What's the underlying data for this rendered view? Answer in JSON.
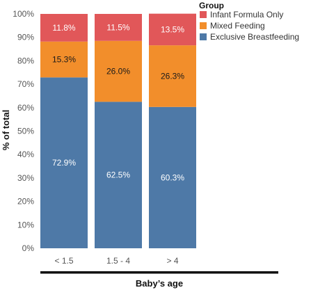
{
  "chart_data": {
    "type": "bar",
    "stacked": true,
    "categories": [
      "< 1.5",
      "1.5 - 4",
      "> 4"
    ],
    "series": [
      {
        "name": "Exclusive Breastfeeding",
        "color": "#4e79a7",
        "values": [
          72.9,
          62.5,
          60.3
        ],
        "labels": [
          "72.9%",
          "62.5%",
          "60.3%"
        ],
        "label_color": "#ffffff"
      },
      {
        "name": "Mixed Feeding",
        "color": "#f28e2b",
        "values": [
          15.3,
          26.0,
          26.3
        ],
        "labels": [
          "15.3%",
          "26.0%",
          "26.3%"
        ],
        "label_color": "#1a1a1a"
      },
      {
        "name": "Infant Formula Only",
        "color": "#e15759",
        "values": [
          11.8,
          11.5,
          13.5
        ],
        "labels": [
          "11.8%",
          "11.5%",
          "13.5%"
        ],
        "label_color": "#ffffff"
      }
    ],
    "xlabel": "Baby’s age",
    "ylabel": "% of total",
    "ylim": [
      0,
      100
    ],
    "yticks": [
      "0%",
      "10%",
      "20%",
      "30%",
      "40%",
      "50%",
      "60%",
      "70%",
      "80%",
      "90%",
      "100%"
    ],
    "legend": {
      "title": "Group",
      "position": "top-right",
      "entries": [
        "Infant Formula Only",
        "Mixed Feeding",
        "Exclusive Breastfeeding"
      ]
    },
    "grid": false
  }
}
